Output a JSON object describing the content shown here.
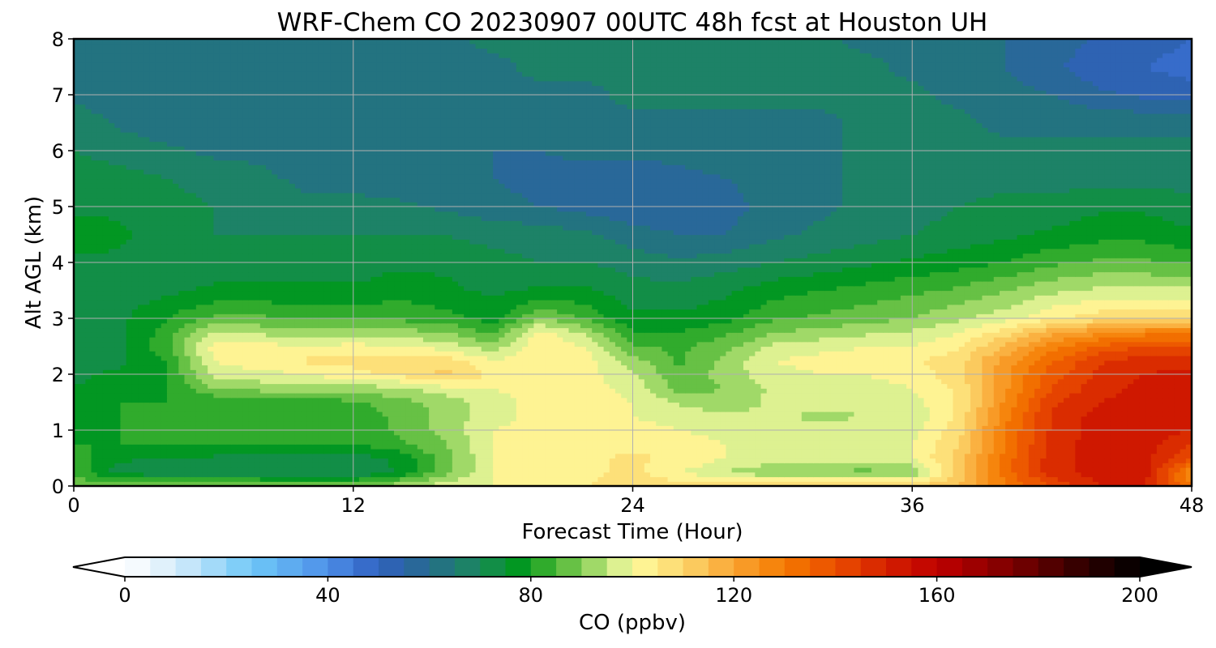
{
  "chart_data": {
    "type": "heatmap",
    "title": "WRF-Chem CO  20230907 00UTC 48h fcst at Houston UH",
    "xlabel": "Forecast Time (Hour)",
    "ylabel": "Alt AGL (km)",
    "xlim": [
      0,
      48
    ],
    "ylim": [
      0,
      8
    ],
    "x_ticks": [
      0,
      12,
      24,
      36,
      48
    ],
    "y_ticks": [
      0,
      1,
      2,
      3,
      4,
      5,
      6,
      7,
      8
    ],
    "grid": true,
    "x": [
      0,
      2,
      4,
      6,
      8,
      10,
      12,
      14,
      16,
      18,
      20,
      22,
      24,
      26,
      28,
      30,
      32,
      34,
      36,
      38,
      40,
      42,
      44,
      46,
      48
    ],
    "y": [
      0,
      0.25,
      0.5,
      0.75,
      1,
      1.25,
      1.5,
      1.75,
      2,
      2.25,
      2.5,
      2.75,
      3,
      3.5,
      4,
      4.5,
      5,
      5.5,
      6,
      6.5,
      7,
      7.5,
      8
    ],
    "z": [
      [
        88,
        92,
        88,
        88,
        88,
        88,
        88,
        94,
        98,
        100,
        102,
        104,
        110,
        108,
        110,
        112,
        112,
        112,
        110,
        115,
        130,
        140,
        150,
        150,
        130
      ],
      [
        84,
        72,
        72,
        72,
        72,
        70,
        70,
        76,
        88,
        100,
        102,
        104,
        106,
        100,
        95,
        90,
        90,
        88,
        90,
        112,
        132,
        148,
        152,
        152,
        125
      ],
      [
        82,
        76,
        74,
        74,
        72,
        72,
        72,
        76,
        88,
        100,
        102,
        104,
        106,
        104,
        100,
        98,
        96,
        98,
        100,
        112,
        132,
        148,
        152,
        152,
        140
      ],
      [
        80,
        80,
        80,
        80,
        80,
        80,
        80,
        84,
        90,
        100,
        102,
        104,
        104,
        104,
        100,
        100,
        98,
        99,
        100,
        110,
        130,
        148,
        152,
        152,
        145
      ],
      [
        78,
        80,
        80,
        80,
        80,
        80,
        82,
        86,
        92,
        100,
        102,
        104,
        102,
        100,
        98,
        98,
        96,
        97,
        98,
        108,
        130,
        146,
        152,
        152,
        150
      ],
      [
        76,
        80,
        80,
        80,
        80,
        80,
        82,
        86,
        92,
        98,
        102,
        104,
        100,
        98,
        96,
        96,
        94,
        95,
        96,
        106,
        128,
        146,
        152,
        152,
        150
      ],
      [
        76,
        80,
        80,
        80,
        80,
        82,
        84,
        88,
        92,
        98,
        102,
        104,
        100,
        94,
        92,
        96,
        96,
        96,
        98,
        106,
        126,
        144,
        150,
        152,
        150
      ],
      [
        75,
        78,
        80,
        90,
        92,
        92,
        92,
        94,
        98,
        100,
        102,
        102,
        98,
        88,
        90,
        96,
        98,
        98,
        100,
        106,
        124,
        140,
        148,
        152,
        150
      ],
      [
        74,
        76,
        80,
        96,
        98,
        100,
        104,
        106,
        112,
        104,
        104,
        102,
        96,
        86,
        92,
        98,
        100,
        100,
        102,
        108,
        124,
        138,
        146,
        150,
        152
      ],
      [
        72,
        74,
        80,
        100,
        104,
        106,
        106,
        106,
        108,
        100,
        104,
        102,
        92,
        84,
        92,
        100,
        102,
        102,
        104,
        108,
        122,
        134,
        144,
        148,
        148
      ],
      [
        72,
        74,
        84,
        102,
        102,
        100,
        102,
        100,
        98,
        92,
        104,
        100,
        86,
        84,
        88,
        96,
        98,
        100,
        100,
        104,
        116,
        128,
        136,
        140,
        140
      ],
      [
        72,
        74,
        82,
        96,
        94,
        92,
        92,
        92,
        90,
        84,
        102,
        94,
        80,
        80,
        84,
        90,
        92,
        94,
        96,
        100,
        108,
        118,
        124,
        128,
        130
      ],
      [
        72,
        74,
        80,
        86,
        86,
        84,
        84,
        84,
        82,
        78,
        90,
        84,
        76,
        76,
        78,
        84,
        86,
        88,
        90,
        94,
        98,
        104,
        108,
        110,
        110
      ],
      [
        72,
        72,
        74,
        76,
        76,
        76,
        76,
        78,
        76,
        74,
        76,
        76,
        72,
        72,
        74,
        78,
        80,
        82,
        84,
        86,
        90,
        94,
        96,
        96,
        96
      ],
      [
        74,
        74,
        72,
        72,
        72,
        72,
        72,
        74,
        74,
        72,
        70,
        70,
        68,
        66,
        68,
        70,
        72,
        74,
        76,
        78,
        80,
        84,
        86,
        86,
        84
      ],
      [
        78,
        76,
        72,
        70,
        70,
        70,
        70,
        70,
        70,
        68,
        68,
        66,
        62,
        60,
        60,
        64,
        66,
        68,
        70,
        72,
        74,
        76,
        78,
        78,
        76
      ],
      [
        74,
        74,
        72,
        70,
        68,
        66,
        66,
        66,
        64,
        62,
        60,
        58,
        56,
        56,
        58,
        62,
        64,
        66,
        68,
        70,
        72,
        72,
        74,
        74,
        72
      ],
      [
        72,
        72,
        70,
        68,
        66,
        64,
        64,
        62,
        60,
        60,
        58,
        56,
        56,
        58,
        60,
        62,
        64,
        66,
        66,
        68,
        68,
        68,
        68,
        68,
        68
      ],
      [
        70,
        68,
        66,
        64,
        64,
        62,
        62,
        62,
        60,
        60,
        60,
        62,
        62,
        62,
        64,
        64,
        64,
        66,
        66,
        66,
        66,
        66,
        66,
        66,
        66
      ],
      [
        68,
        64,
        62,
        62,
        62,
        62,
        62,
        62,
        62,
        62,
        64,
        64,
        64,
        64,
        64,
        64,
        64,
        66,
        66,
        66,
        64,
        64,
        64,
        64,
        64
      ],
      [
        64,
        62,
        62,
        62,
        62,
        60,
        60,
        62,
        62,
        64,
        64,
        64,
        66,
        66,
        66,
        66,
        66,
        66,
        66,
        64,
        62,
        60,
        56,
        54,
        52
      ],
      [
        62,
        62,
        62,
        62,
        62,
        62,
        62,
        64,
        64,
        64,
        66,
        66,
        66,
        66,
        66,
        66,
        66,
        66,
        64,
        62,
        60,
        56,
        52,
        50,
        48
      ],
      [
        62,
        62,
        60,
        60,
        60,
        62,
        62,
        64,
        64,
        66,
        66,
        66,
        66,
        66,
        66,
        66,
        66,
        64,
        64,
        62,
        60,
        58,
        54,
        52,
        50
      ]
    ],
    "colorbar": {
      "label": "CO  (ppbv)",
      "min": 0,
      "max": 200,
      "step": 5,
      "ticks": [
        0,
        40,
        80,
        120,
        160,
        200
      ],
      "extend": "both",
      "orientation": "horizontal",
      "colors": {
        "0": "#ffffff",
        "10": "#d6ecfa",
        "25": "#6fc8f8",
        "40": "#4d8fe8",
        "50": "#3060c0",
        "60": "#266b8c",
        "70": "#1a8a5a",
        "78": "#00981e",
        "85": "#4ab534",
        "92": "#9ad664",
        "97": "#d6ef8e",
        "100": "#fffca0",
        "110": "#fcd66c",
        "120": "#f9a432",
        "130": "#f57a00",
        "140": "#ea4e00",
        "150": "#d42000",
        "160": "#bf0000",
        "175": "#7a0000",
        "190": "#2a0000",
        "200": "#000000"
      }
    }
  }
}
